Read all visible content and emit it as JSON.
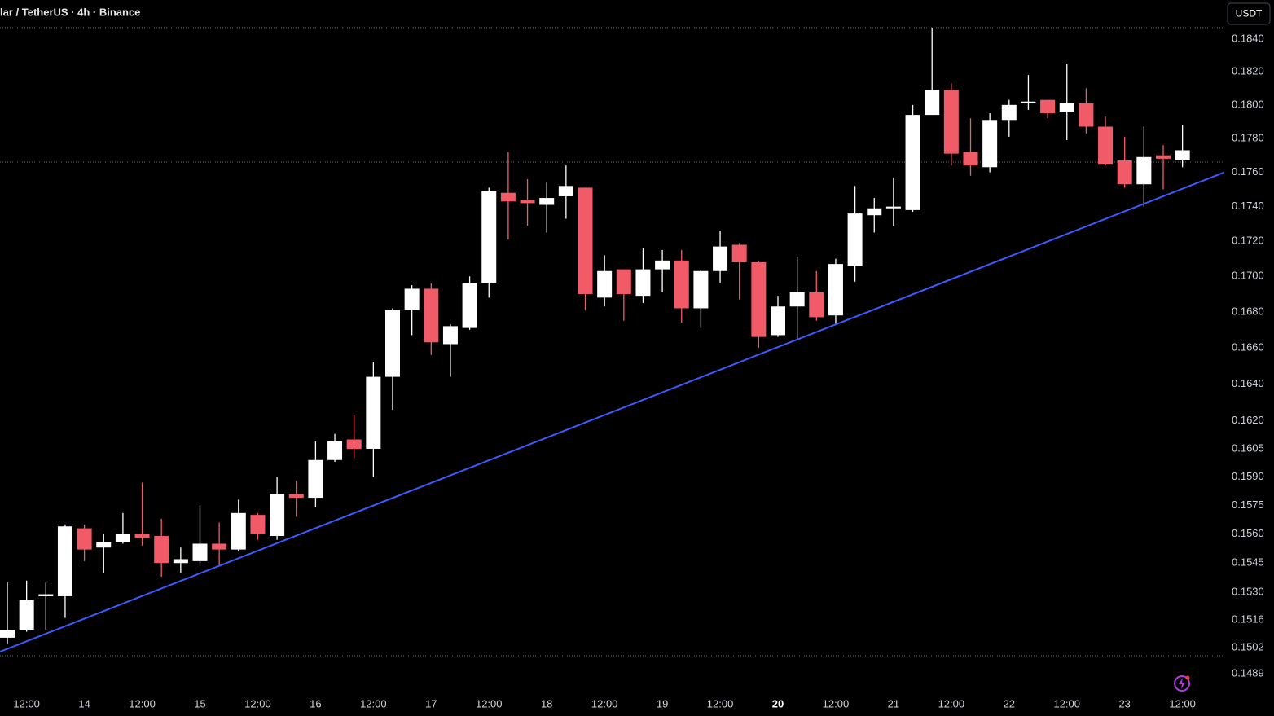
{
  "chart_data": {
    "type": "candlestick",
    "title": "lar / TetherUS · 4h · Binance",
    "currency": "USDT",
    "categories": [
      null,
      "12:00",
      null,
      null,
      "14",
      null,
      null,
      "12:00",
      null,
      null,
      "15",
      null,
      null,
      "12:00",
      null,
      null,
      "16",
      null,
      null,
      "12:00",
      null,
      null,
      "17",
      null,
      null,
      "12:00",
      null,
      null,
      "18",
      null,
      null,
      "12:00",
      null,
      null,
      "19",
      null,
      null,
      "12:00",
      null,
      null,
      "20",
      null,
      null,
      "12:00",
      null,
      null,
      "21",
      null,
      null,
      "12:00",
      null,
      null,
      "22",
      null,
      null,
      "12:00",
      null,
      null,
      "23",
      null,
      null,
      "12:00"
    ],
    "open": [
      0.1507,
      0.1511,
      0.1528,
      0.1528,
      0.1563,
      0.1553,
      0.1556,
      0.156,
      0.1559,
      0.1545,
      0.1546,
      0.1555,
      0.1552,
      0.157,
      0.1559,
      0.1581,
      0.1579,
      0.1599,
      0.161,
      0.1605,
      0.1644,
      0.1681,
      0.1693,
      0.1662,
      0.1671,
      0.1696,
      0.1748,
      0.1744,
      0.1741,
      0.1746,
      0.1751,
      0.1688,
      0.1704,
      0.1689,
      0.1704,
      0.1709,
      0.1682,
      0.1703,
      0.1718,
      0.1708,
      0.1667,
      0.1683,
      0.1691,
      0.1678,
      0.1706,
      0.1735,
      0.1739,
      0.1738,
      0.1794,
      0.1809,
      0.1772,
      0.1763,
      0.1791,
      0.1801,
      0.1803,
      0.1796,
      0.1801,
      0.1787,
      0.1767,
      0.1753,
      0.177,
      0.1767
    ],
    "high": [
      0.1535,
      0.1536,
      0.1535,
      0.1565,
      0.1565,
      0.156,
      0.1571,
      0.1587,
      0.1568,
      0.1553,
      0.1575,
      0.1566,
      0.1578,
      0.1571,
      0.159,
      0.1588,
      0.1609,
      0.1613,
      0.1623,
      0.1652,
      0.1682,
      0.1695,
      0.1696,
      0.1673,
      0.17,
      0.1751,
      0.1772,
      0.1756,
      0.1754,
      0.1764,
      0.1751,
      0.1712,
      0.1704,
      0.1716,
      0.1715,
      0.1715,
      0.1704,
      0.1726,
      0.1719,
      0.1709,
      0.1689,
      0.1711,
      0.1703,
      0.171,
      0.1752,
      0.1745,
      0.1757,
      0.18,
      0.1847,
      0.1813,
      0.1792,
      0.1795,
      0.1803,
      0.1818,
      0.1803,
      0.1825,
      0.181,
      0.1793,
      0.1781,
      0.1787,
      0.1776,
      0.1788
    ],
    "low": [
      0.1504,
      0.151,
      0.1511,
      0.1517,
      0.1546,
      0.154,
      0.1555,
      0.1554,
      0.1538,
      0.154,
      0.1545,
      0.1544,
      0.1551,
      0.1557,
      0.1557,
      0.1569,
      0.1574,
      0.1598,
      0.16,
      0.159,
      0.1626,
      0.1667,
      0.1656,
      0.1644,
      0.167,
      0.1688,
      0.1721,
      0.1729,
      0.1725,
      0.1733,
      0.1681,
      0.1683,
      0.1675,
      0.1685,
      0.1691,
      0.1674,
      0.1671,
      0.1696,
      0.1687,
      0.166,
      0.1666,
      0.1665,
      0.1675,
      0.1673,
      0.1697,
      0.1725,
      0.1729,
      0.1737,
      0.1794,
      0.1764,
      0.1758,
      0.176,
      0.1781,
      0.1797,
      0.1792,
      0.1779,
      0.1783,
      0.1764,
      0.1751,
      0.174,
      0.175,
      0.1763
    ],
    "close": [
      0.1511,
      0.1526,
      0.1529,
      0.1564,
      0.1552,
      0.1556,
      0.156,
      0.1558,
      0.1545,
      0.1547,
      0.1555,
      0.1552,
      0.1571,
      0.156,
      0.1581,
      0.1579,
      0.1599,
      0.1609,
      0.1605,
      0.1644,
      0.1681,
      0.1693,
      0.1663,
      0.1672,
      0.1696,
      0.1749,
      0.1743,
      0.1742,
      0.1745,
      0.1752,
      0.169,
      0.1703,
      0.169,
      0.1704,
      0.1709,
      0.1682,
      0.1703,
      0.1717,
      0.1708,
      0.1666,
      0.1683,
      0.1691,
      0.1677,
      0.1707,
      0.1736,
      0.1739,
      0.174,
      0.1794,
      0.1809,
      0.1771,
      0.1764,
      0.1791,
      0.18,
      0.1802,
      0.1795,
      0.1801,
      0.1787,
      0.1765,
      0.1753,
      0.1769,
      0.1768,
      0.1773
    ],
    "up_color": "#ffffff",
    "down_color": "#f15b68",
    "ylim": [
      0.14818,
      0.18641
    ],
    "log_scale": true,
    "grid": false,
    "yticks": [
      {
        "value": 0.184,
        "label": "0.1840"
      },
      {
        "value": 0.182,
        "label": "0.1820"
      },
      {
        "value": 0.18,
        "label": "0.1800"
      },
      {
        "value": 0.178,
        "label": "0.1780"
      },
      {
        "value": 0.176,
        "label": "0.1760"
      },
      {
        "value": 0.174,
        "label": "0.1740"
      },
      {
        "value": 0.172,
        "label": "0.1720"
      },
      {
        "value": 0.17,
        "label": "0.1700"
      },
      {
        "value": 0.168,
        "label": "0.1680"
      },
      {
        "value": 0.166,
        "label": "0.1660"
      },
      {
        "value": 0.164,
        "label": "0.1640"
      },
      {
        "value": 0.162,
        "label": "0.1620"
      },
      0.1605,
      {
        "value": 0.159,
        "label": "0.1590"
      },
      0.1575,
      {
        "value": 0.156,
        "label": "0.1560"
      },
      0.1545,
      {
        "value": 0.153,
        "label": "0.1530"
      },
      0.1516,
      0.1502,
      0.1489
    ],
    "hlines": [
      0.1847,
      0.1766,
      0.1498
    ],
    "trendline": {
      "color": "#3d5afe",
      "start": {
        "index": -0.38,
        "value": 0.15
      },
      "end": {
        "index": 63.17,
        "value": 0.176
      }
    }
  }
}
